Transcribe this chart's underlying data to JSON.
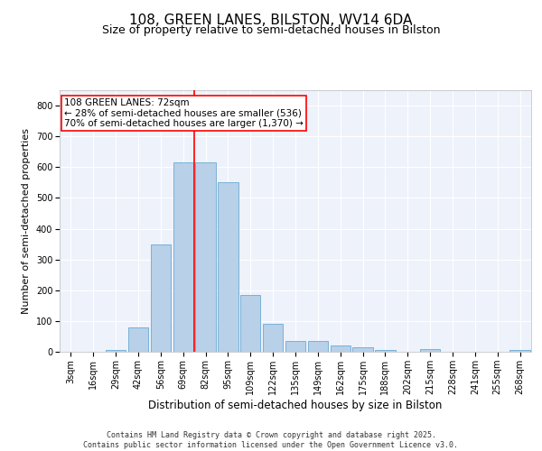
{
  "title1": "108, GREEN LANES, BILSTON, WV14 6DA",
  "title2": "Size of property relative to semi-detached houses in Bilston",
  "xlabel": "Distribution of semi-detached houses by size in Bilston",
  "ylabel": "Number of semi-detached properties",
  "categories": [
    "3sqm",
    "16sqm",
    "29sqm",
    "42sqm",
    "56sqm",
    "69sqm",
    "82sqm",
    "95sqm",
    "109sqm",
    "122sqm",
    "135sqm",
    "149sqm",
    "162sqm",
    "175sqm",
    "188sqm",
    "202sqm",
    "215sqm",
    "228sqm",
    "241sqm",
    "255sqm",
    "268sqm"
  ],
  "values": [
    0,
    0,
    5,
    80,
    350,
    615,
    615,
    550,
    185,
    90,
    35,
    35,
    20,
    15,
    5,
    0,
    10,
    0,
    0,
    0,
    5
  ],
  "bar_color": "#b8d0e8",
  "bar_edge_color": "#6aaad4",
  "vline_x": 5.5,
  "vline_color": "red",
  "annotation_text": "108 GREEN LANES: 72sqm\n← 28% of semi-detached houses are smaller (536)\n70% of semi-detached houses are larger (1,370) →",
  "annotation_box_color": "#ffffff",
  "annotation_box_edge": "red",
  "ylim": [
    0,
    850
  ],
  "yticks": [
    0,
    100,
    200,
    300,
    400,
    500,
    600,
    700,
    800
  ],
  "background_color": "#eef2fb",
  "grid_color": "#ffffff",
  "footer": "Contains HM Land Registry data © Crown copyright and database right 2025.\nContains public sector information licensed under the Open Government Licence v3.0.",
  "title1_fontsize": 11,
  "title2_fontsize": 9,
  "xlabel_fontsize": 8.5,
  "ylabel_fontsize": 8,
  "tick_fontsize": 7,
  "annotation_fontsize": 7.5,
  "footer_fontsize": 6
}
